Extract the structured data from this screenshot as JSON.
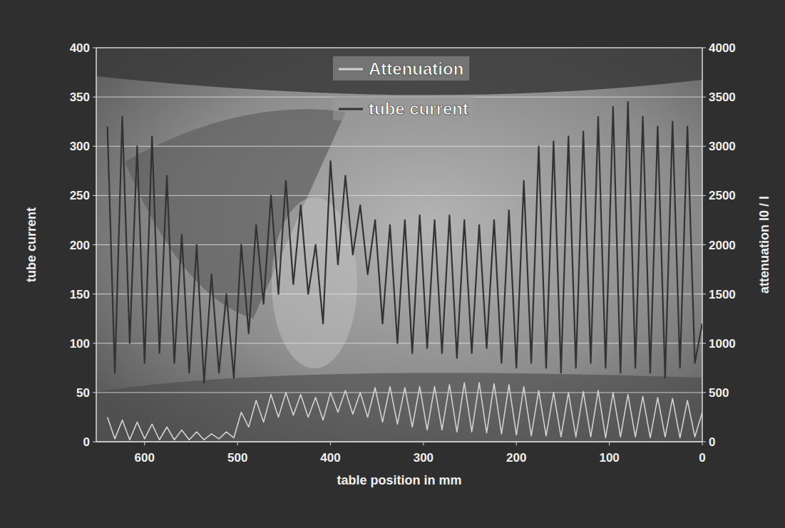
{
  "chart_data": {
    "type": "line",
    "x_label": "table position in mm",
    "y_label": "tube current",
    "y2_label": "attenuation I0 / I",
    "x": [
      640,
      632,
      624,
      616,
      608,
      600,
      592,
      584,
      576,
      568,
      560,
      552,
      544,
      536,
      528,
      520,
      512,
      504,
      496,
      488,
      480,
      472,
      464,
      456,
      448,
      440,
      432,
      424,
      416,
      408,
      400,
      392,
      384,
      376,
      368,
      360,
      352,
      344,
      336,
      328,
      320,
      312,
      304,
      296,
      288,
      280,
      272,
      264,
      256,
      248,
      240,
      232,
      224,
      216,
      208,
      200,
      192,
      184,
      176,
      168,
      160,
      152,
      144,
      136,
      128,
      120,
      112,
      104,
      96,
      88,
      80,
      72,
      64,
      56,
      48,
      40,
      32,
      24,
      16,
      8,
      0
    ],
    "series": [
      {
        "name": "Attenuation",
        "color": "#d2d2d2",
        "axis": "y2",
        "values": [
          250,
          30,
          220,
          20,
          200,
          30,
          180,
          20,
          150,
          20,
          120,
          20,
          100,
          20,
          80,
          30,
          100,
          40,
          300,
          150,
          420,
          200,
          480,
          250,
          500,
          270,
          480,
          250,
          450,
          220,
          500,
          300,
          520,
          280,
          500,
          250,
          550,
          200,
          560,
          180,
          550,
          150,
          560,
          120,
          560,
          120,
          580,
          100,
          600,
          100,
          600,
          90,
          590,
          80,
          580,
          70,
          560,
          60,
          520,
          60,
          500,
          50,
          500,
          50,
          510,
          50,
          520,
          40,
          500,
          50,
          480,
          50,
          460,
          40,
          450,
          50,
          440,
          40,
          420,
          50,
          300
        ]
      },
      {
        "name": "tube current",
        "color": "#333333",
        "values": [
          320,
          70,
          330,
          100,
          300,
          80,
          310,
          90,
          270,
          80,
          210,
          70,
          200,
          60,
          170,
          70,
          150,
          65,
          200,
          110,
          220,
          140,
          250,
          150,
          265,
          160,
          240,
          150,
          200,
          120,
          285,
          180,
          270,
          190,
          240,
          170,
          225,
          120,
          220,
          100,
          225,
          90,
          230,
          95,
          225,
          90,
          230,
          85,
          225,
          90,
          220,
          95,
          225,
          80,
          235,
          75,
          265,
          80,
          300,
          75,
          305,
          70,
          310,
          75,
          315,
          80,
          330,
          75,
          340,
          70,
          345,
          75,
          330,
          70,
          320,
          65,
          325,
          75,
          320,
          80,
          120
        ]
      }
    ],
    "xlim": [
      652,
      0
    ],
    "xticks": [
      600,
      500,
      400,
      300,
      200,
      100,
      0
    ],
    "ylim": [
      0,
      400
    ],
    "yticks": [
      0,
      50,
      100,
      150,
      200,
      250,
      300,
      350,
      400
    ],
    "y2lim": [
      0,
      4000
    ],
    "y2ticks": [
      0,
      500,
      1000,
      1500,
      2000,
      2500,
      3000,
      3500,
      4000
    ],
    "grid": true,
    "legend": "top"
  }
}
